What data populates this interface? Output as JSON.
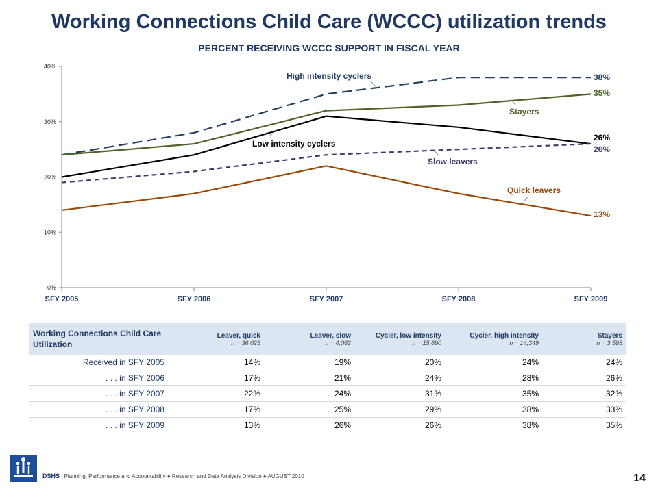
{
  "title": "Working Connections Child Care (WCCC) utilization trends",
  "subtitle": "PERCENT RECEIVING WCCC SUPPORT IN FISCAL YEAR",
  "chart_data": {
    "type": "line",
    "categories": [
      "SFY 2005",
      "SFY 2006",
      "SFY 2007",
      "SFY 2008",
      "SFY 2009"
    ],
    "ylim": [
      0,
      40
    ],
    "yticks": [
      "0%",
      "10%",
      "20%",
      "30%",
      "40%"
    ],
    "grid": false,
    "series": [
      {
        "name": "High intensity cyclers",
        "values": [
          24,
          28,
          35,
          38,
          38
        ],
        "color": "#243F60",
        "dash": "long",
        "end_label": "38%"
      },
      {
        "name": "Stayers",
        "values": [
          24,
          26,
          32,
          33,
          35
        ],
        "color": "#4F6228",
        "dash": "solid",
        "end_label": "35%"
      },
      {
        "name": "Low intensity cyclers",
        "values": [
          20,
          24,
          31,
          29,
          26
        ],
        "color": "#000000",
        "dash": "solid",
        "end_label": "26%"
      },
      {
        "name": "Slow leavers",
        "values": [
          19,
          21,
          24,
          25,
          26
        ],
        "color": "#3B3B6B",
        "dash": "short",
        "end_label": "26%"
      },
      {
        "name": "Quick leavers",
        "values": [
          14,
          17,
          22,
          17,
          13
        ],
        "color": "#984807",
        "dash": "solid",
        "end_label": "13%"
      }
    ]
  },
  "table": {
    "title": "Working Connections Child Care Utilization",
    "columns": [
      {
        "label": "Leaver, quick",
        "n": "n = 36,025"
      },
      {
        "label": "Leaver, slow",
        "n": "n = 4,062"
      },
      {
        "label": "Cycler, low intensity",
        "n": "n = 15,890"
      },
      {
        "label": "Cycler, high intensity",
        "n": "n = 14,349"
      },
      {
        "label": "Stayers",
        "n": "n = 3,595"
      }
    ],
    "rows": [
      {
        "label": "Received in SFY 2005",
        "values": [
          "14%",
          "19%",
          "20%",
          "24%",
          "24%"
        ]
      },
      {
        "label": ". . . in SFY 2006",
        "values": [
          "17%",
          "21%",
          "24%",
          "28%",
          "26%"
        ]
      },
      {
        "label": ". . . in SFY 2007",
        "values": [
          "22%",
          "24%",
          "31%",
          "35%",
          "32%"
        ]
      },
      {
        "label": ". . . in SFY 2008",
        "values": [
          "17%",
          "25%",
          "29%",
          "38%",
          "33%"
        ]
      },
      {
        "label": ". . . in SFY 2009",
        "values": [
          "13%",
          "26%",
          "26%",
          "38%",
          "35%"
        ]
      }
    ]
  },
  "footer": {
    "org": "DSHS",
    "text": "Planning, Performance and Accountability ● Research and Data Analysis Division ● AUGUST 2010",
    "page": "14"
  }
}
